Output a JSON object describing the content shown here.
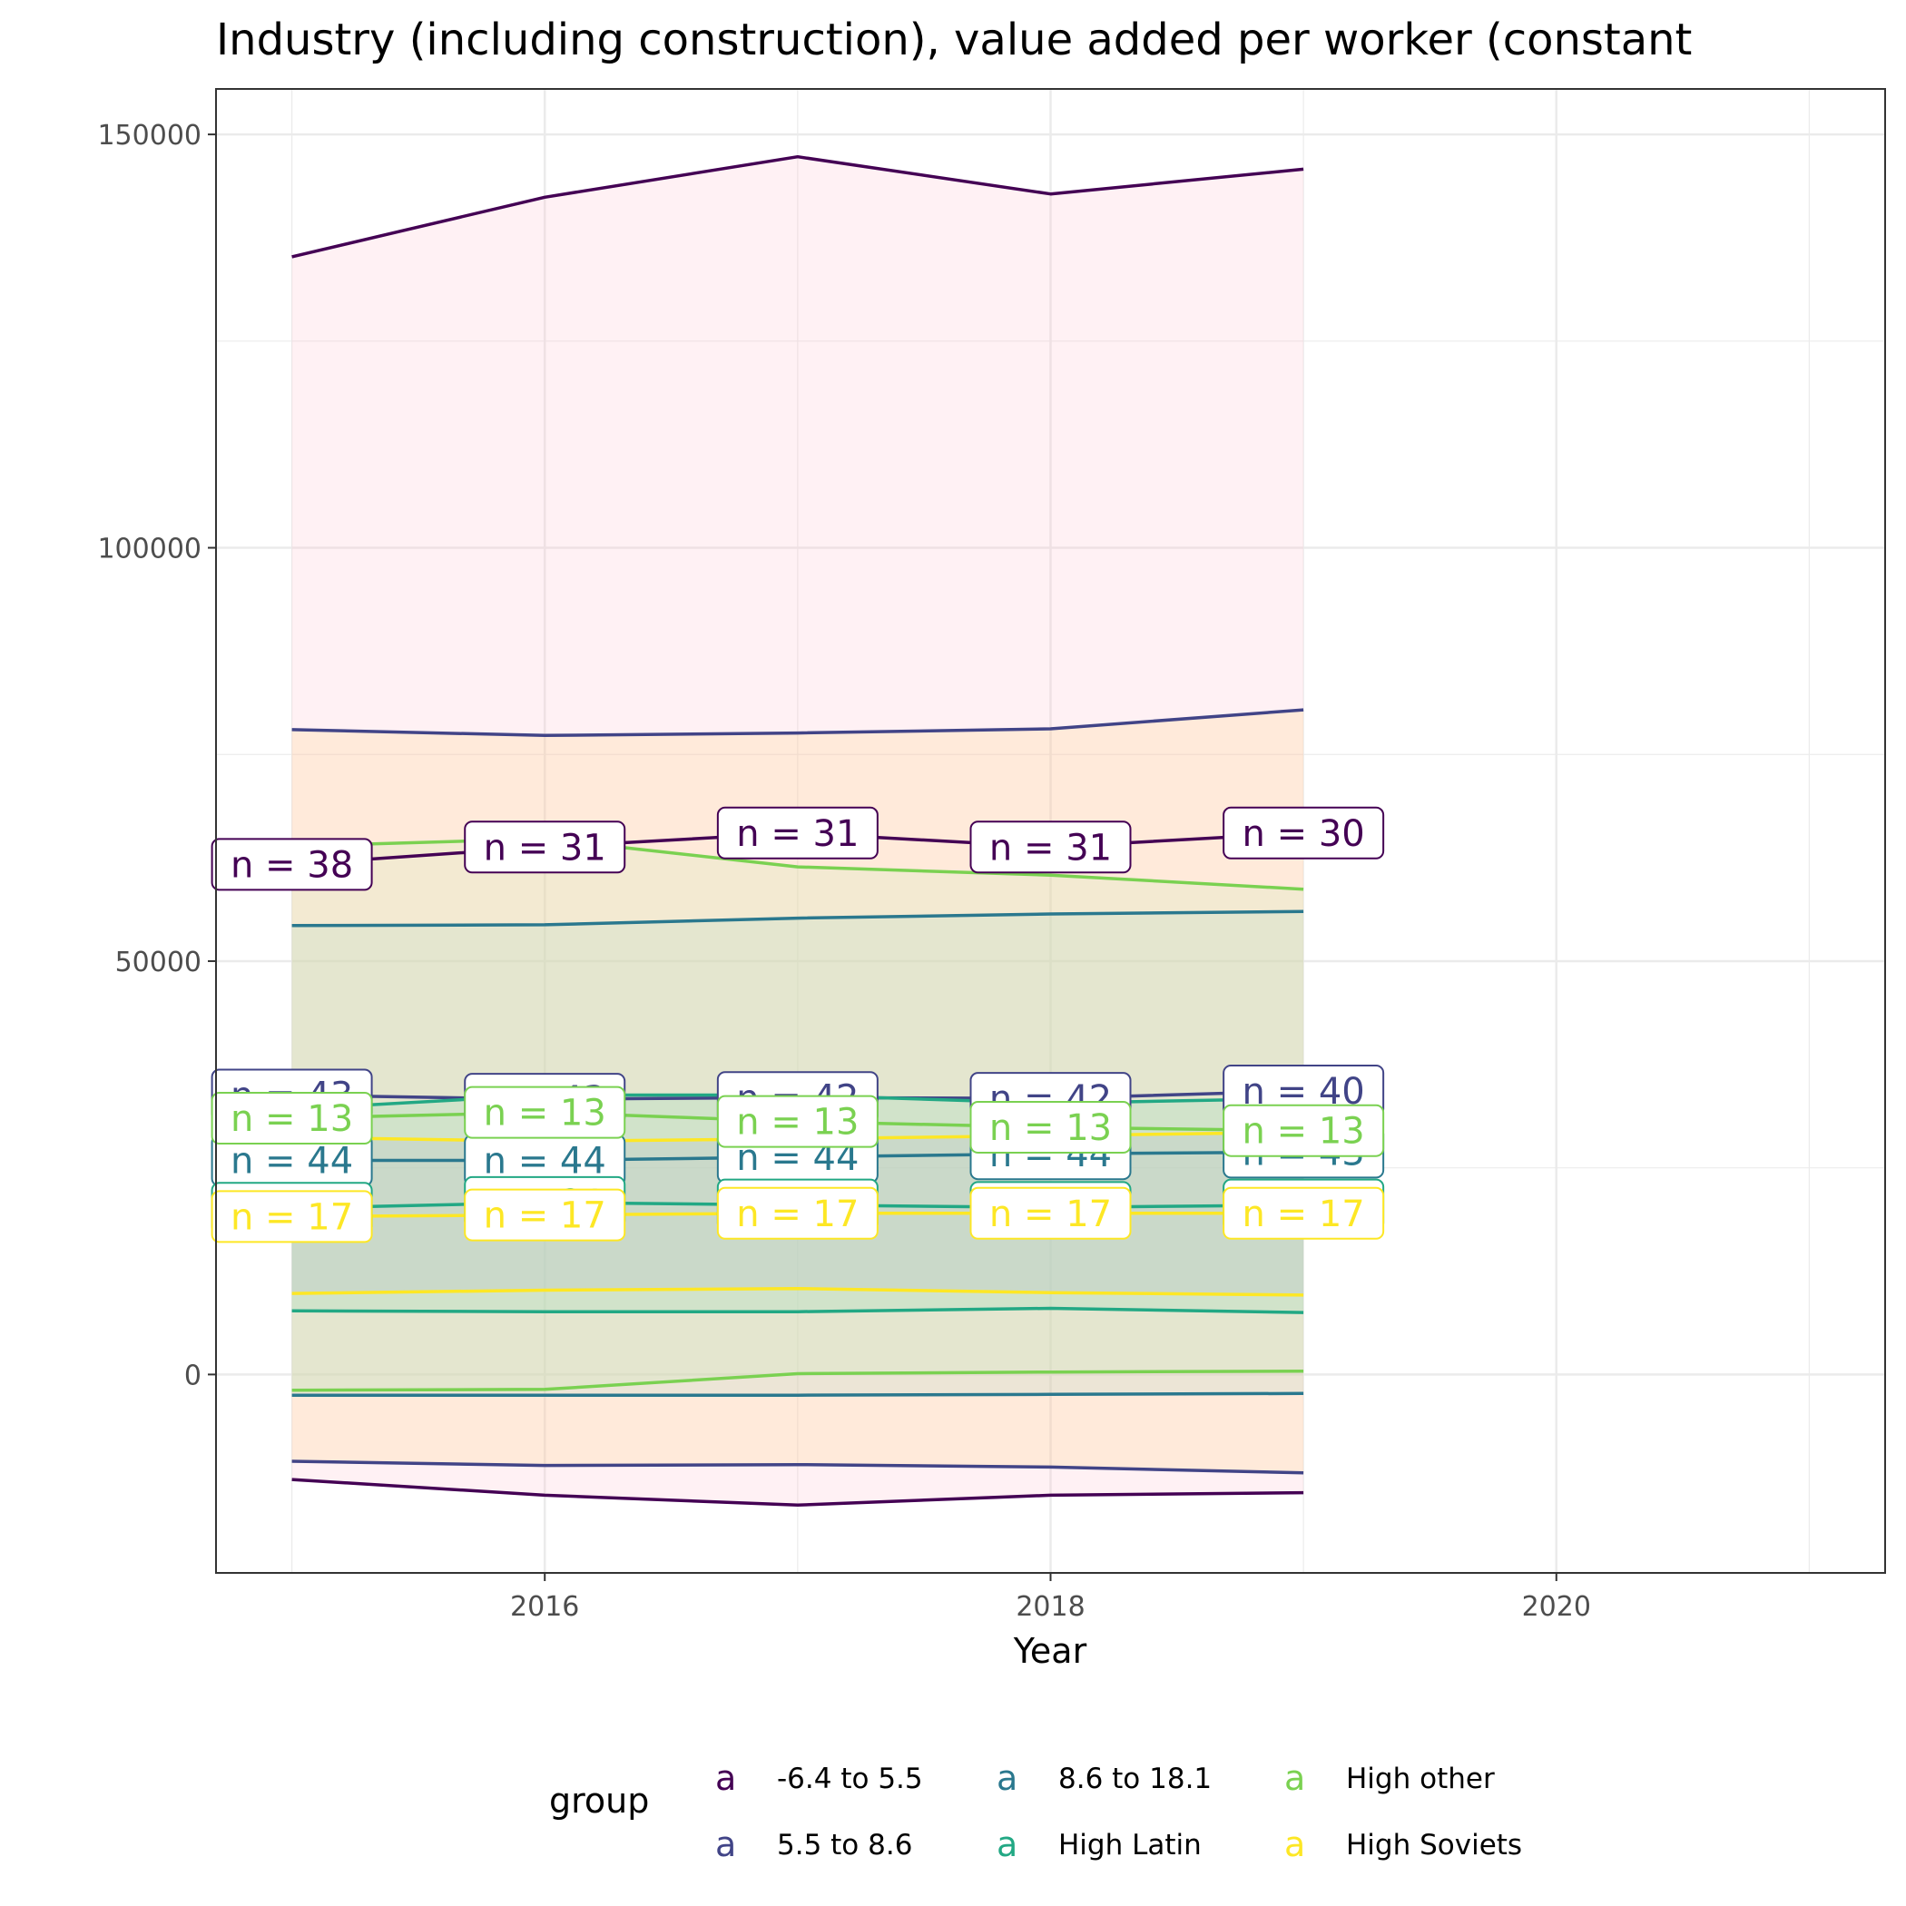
{
  "chart_data": {
    "type": "line",
    "title": "Industry (including construction), value added per worker (constant",
    "xlabel": "Year",
    "ylabel": "",
    "xlim": [
      2014.7,
      2021.3
    ],
    "ylim": [
      -24000,
      155500
    ],
    "x_ticks": [
      2016,
      2018,
      2020
    ],
    "x_tick_labels": [
      "2016",
      "2018",
      "2020"
    ],
    "y_ticks": [
      0,
      50000,
      100000,
      150000
    ],
    "y_tick_labels": [
      "0",
      "50000",
      "100000",
      "150000"
    ],
    "grid": true,
    "legend": {
      "title": "group",
      "position": "bottom",
      "key_glyph": "a",
      "entries": [
        "-6.4 to 5.5",
        "5.5 to 8.6",
        "8.6 to 18.1",
        "High Latin",
        "High other",
        "High Soviets"
      ]
    },
    "x": [
      2015,
      2016,
      2017,
      2018,
      2019
    ],
    "series": [
      {
        "name": "-6.4 to 5.5",
        "color": "#440154",
        "ribbon_color": "#ffc0cb",
        "upper": [
          135200,
          142400,
          147300,
          142800,
          145800
        ],
        "mean": [
          61700,
          63800,
          65500,
          63800,
          65500
        ],
        "lower": [
          -12700,
          -14600,
          -15800,
          -14600,
          -14300
        ],
        "labels": [
          "n = 38",
          "n = 31",
          "n = 31",
          "n = 31",
          "n = 30"
        ]
      },
      {
        "name": "5.5 to 8.6",
        "color": "#414487",
        "ribbon_color": "#ffd27f",
        "upper": [
          78000,
          77300,
          77600,
          78100,
          80400
        ],
        "mean": [
          33800,
          33300,
          33500,
          33400,
          34300
        ],
        "lower": [
          -10500,
          -11000,
          -10900,
          -11200,
          -11900
        ],
        "labels": [
          "n = 43",
          "n = 43",
          "n = 42",
          "n = 42",
          "n = 40"
        ]
      },
      {
        "name": "8.6 to 18.1",
        "color": "#2a788e",
        "ribbon_color": "#a9d8c8",
        "upper": [
          54300,
          54400,
          55200,
          55700,
          56000
        ],
        "mean": [
          25900,
          25900,
          26300,
          26700,
          26900
        ],
        "lower": [
          -2500,
          -2500,
          -2500,
          -2400,
          -2300
        ],
        "labels": [
          "n = 44",
          "n = 44",
          "n = 44",
          "n = 44",
          "n = 43"
        ]
      },
      {
        "name": "High Latin",
        "color": "#22a884",
        "ribbon_color": "#7fd6b9",
        "upper": [
          32100,
          33800,
          33800,
          32800,
          33400
        ],
        "mean": [
          20100,
          20800,
          20500,
          20200,
          20500
        ],
        "lower": [
          7700,
          7600,
          7600,
          8000,
          7500
        ],
        "labels": [
          "n = 21",
          "n = 21",
          "n = 21",
          "n = 21",
          "n = 21"
        ]
      },
      {
        "name": "High other",
        "color": "#7ad151",
        "ribbon_color": "#c8ebb5",
        "upper": [
          63900,
          64800,
          61400,
          60400,
          58700
        ],
        "mean": [
          31000,
          31700,
          30600,
          29900,
          29500
        ],
        "lower": [
          -1900,
          -1800,
          100,
          300,
          400
        ],
        "labels": [
          "n = 13",
          "n = 13",
          "n = 13",
          "n = 13",
          "n = 13"
        ]
      },
      {
        "name": "High Soviets",
        "color": "#fde725",
        "ribbon_color": "#b0b8c8",
        "upper": [
          28700,
          28200,
          28500,
          28900,
          29300
        ],
        "mean": [
          19100,
          19300,
          19500,
          19500,
          19500
        ],
        "lower": [
          9800,
          10200,
          10400,
          9900,
          9600
        ],
        "labels": [
          "n = 17",
          "n = 17",
          "n = 17",
          "n = 17",
          "n = 17"
        ]
      }
    ]
  }
}
